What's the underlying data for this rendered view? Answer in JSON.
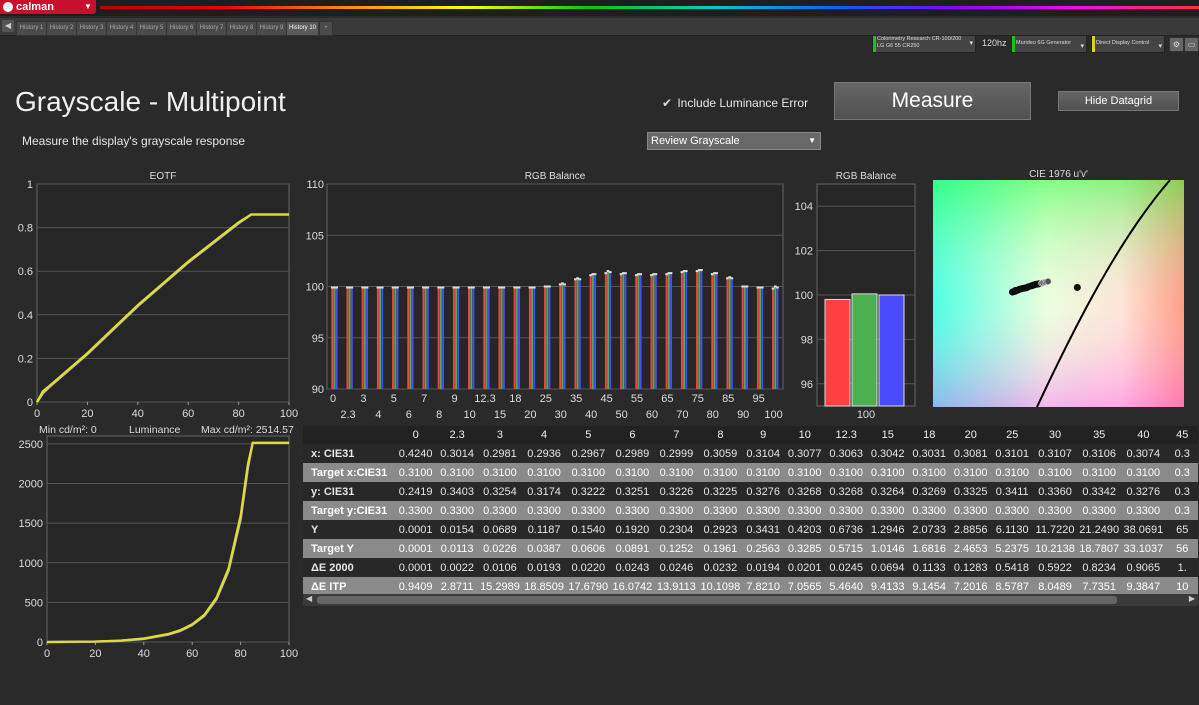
{
  "app": {
    "name": "calman"
  },
  "tabs": [
    "History 1",
    "History 2",
    "History 3",
    "History 4",
    "History 5",
    "History 6",
    "History 7",
    "History 8",
    "History 9",
    "History 10"
  ],
  "active_tab": "History 10",
  "devices": {
    "meter_line1": "Colorimetry Research CR-100/200",
    "meter_line2": "LG G6 55 CR250",
    "refresh": "120hz",
    "generator": "Murideo 6G Generator",
    "control": "Direct Display Control"
  },
  "page": {
    "title": "Grayscale - Multipoint",
    "subtitle": "Measure the display's grayscale response",
    "include_luminance_label": "Include Luminance Error",
    "measure_label": "Measure",
    "hide_datagrid_label": "Hide Datagrid",
    "review_select": "Review Grayscale"
  },
  "colors": {
    "red": "#ff4040",
    "green": "#4caf50",
    "blue": "#4a4aff",
    "yellow": "#e0e020",
    "accent": "#c8102e"
  },
  "chart_data": [
    {
      "type": "line",
      "title": "EOTF",
      "xlim": [
        0,
        100
      ],
      "ylim": [
        0,
        1
      ],
      "xticks": [
        0,
        20,
        40,
        60,
        80,
        100
      ],
      "yticks": [
        0,
        0.2,
        0.4,
        0.6,
        0.8,
        1
      ],
      "ytick_labels": [
        "0",
        "0.2",
        "0.4",
        "0.6",
        "0.8",
        "1"
      ],
      "series": [
        {
          "color": "#bdbdbd",
          "x": [
            0,
            2.3,
            5,
            10,
            20,
            40,
            60,
            80,
            85,
            100
          ],
          "y": [
            0.0,
            0.04,
            0.07,
            0.12,
            0.22,
            0.44,
            0.64,
            0.82,
            0.86,
            0.86
          ]
        },
        {
          "color": "#e0e020",
          "x": [
            0,
            2.3,
            5,
            10,
            20,
            40,
            60,
            80,
            85,
            100
          ],
          "y": [
            0.0,
            0.05,
            0.075,
            0.125,
            0.225,
            0.445,
            0.645,
            0.825,
            0.86,
            0.86
          ]
        }
      ]
    },
    {
      "type": "bar",
      "title": "RGB Balance",
      "ylim": [
        90,
        110
      ],
      "yticks": [
        90,
        95,
        100,
        105,
        110
      ],
      "xtick_labels_top": [
        "0",
        "3",
        "5",
        "7",
        "9",
        "12.3",
        "18",
        "25",
        "35",
        "45",
        "55",
        "65",
        "75",
        "85",
        "95"
      ],
      "xtick_labels_bottom": [
        "2.3",
        "4",
        "6",
        "8",
        "10",
        "15",
        "20",
        "30",
        "40",
        "50",
        "60",
        "70",
        "80",
        "90",
        "100"
      ],
      "categories": [
        "0",
        "2.3",
        "3",
        "4",
        "5",
        "6",
        "7",
        "8",
        "9",
        "10",
        "12.3",
        "15",
        "18",
        "20",
        "25",
        "30",
        "35",
        "40",
        "45",
        "50",
        "55",
        "60",
        "65",
        "70",
        "75",
        "80",
        "85",
        "90",
        "95",
        "100"
      ],
      "series": [
        {
          "color": "#ff4040",
          "values": [
            100.0,
            100.0,
            100.0,
            100.0,
            100.0,
            100.0,
            100.0,
            100.0,
            100.0,
            100.0,
            100.0,
            100.0,
            100.0,
            100.0,
            100.1,
            100.3,
            100.8,
            101.2,
            101.4,
            101.3,
            101.2,
            101.2,
            101.3,
            101.5,
            101.6,
            101.3,
            100.9,
            100.1,
            100.0,
            99.9
          ]
        },
        {
          "color": "#4caf50",
          "values": [
            100.0,
            100.0,
            100.0,
            100.0,
            100.0,
            100.0,
            100.0,
            100.0,
            100.0,
            100.0,
            100.0,
            100.0,
            100.0,
            100.0,
            100.1,
            100.4,
            100.9,
            101.3,
            101.6,
            101.4,
            101.3,
            101.3,
            101.4,
            101.6,
            101.7,
            101.4,
            101.0,
            100.1,
            100.0,
            100.1
          ]
        },
        {
          "color": "#4a4aff",
          "values": [
            100.0,
            100.0,
            100.0,
            100.0,
            100.0,
            100.0,
            100.0,
            100.0,
            100.0,
            100.0,
            100.0,
            100.0,
            100.0,
            100.0,
            100.1,
            100.3,
            100.8,
            101.3,
            101.5,
            101.4,
            101.3,
            101.3,
            101.4,
            101.6,
            101.7,
            101.4,
            100.9,
            100.1,
            100.0,
            100.0
          ]
        }
      ]
    },
    {
      "type": "bar",
      "title": "RGB Balance",
      "ylim": [
        95,
        105
      ],
      "yticks": [
        96,
        98,
        100,
        102,
        104
      ],
      "categories": [
        "100"
      ],
      "series": [
        {
          "color": "#ff4040",
          "values": [
            99.8
          ]
        },
        {
          "color": "#4caf50",
          "values": [
            100.05
          ]
        },
        {
          "color": "#4a4aff",
          "values": [
            100.0
          ]
        }
      ]
    },
    {
      "type": "scatter",
      "title": "CIE 1976 u'v'",
      "points": [
        [
          0.2145,
          0.479
        ],
        [
          0.199,
          0.476
        ],
        [
          0.1996,
          0.4765
        ],
        [
          0.1997,
          0.477
        ],
        [
          0.2002,
          0.4772
        ],
        [
          0.2007,
          0.4778
        ],
        [
          0.201,
          0.478
        ],
        [
          0.2015,
          0.4784
        ],
        [
          0.202,
          0.4786
        ],
        [
          0.2025,
          0.479
        ],
        [
          0.2028,
          0.4795
        ],
        [
          0.2035,
          0.48
        ],
        [
          0.204,
          0.4805
        ],
        [
          0.2045,
          0.481
        ],
        [
          0.205,
          0.4812
        ],
        [
          0.2055,
          0.4815
        ],
        [
          0.206,
          0.4818
        ],
        [
          0.2063,
          0.4822
        ],
        [
          0.2068,
          0.4825
        ],
        [
          0.2072,
          0.4828
        ],
        [
          0.2075,
          0.483
        ]
      ]
    },
    {
      "type": "line",
      "title": "Luminance",
      "min_label": "Min cd/m²: 0",
      "max_label": "Max cd/m²: 2514.57",
      "xlim": [
        0,
        100
      ],
      "ylim": [
        0,
        2600
      ],
      "xticks": [
        0,
        20,
        40,
        60,
        80,
        100
      ],
      "yticks": [
        0,
        500,
        1000,
        1500,
        2000,
        2500
      ],
      "series": [
        {
          "color": "#bdbdbd",
          "x": [
            0,
            20,
            30,
            40,
            50,
            55,
            60,
            65,
            70,
            75,
            80,
            83,
            85,
            100
          ],
          "y": [
            0,
            5,
            15,
            40,
            95,
            140,
            215,
            330,
            540,
            900,
            1550,
            2200,
            2514,
            2514
          ]
        },
        {
          "color": "#e0e020",
          "x": [
            0,
            20,
            30,
            40,
            50,
            55,
            60,
            65,
            70,
            75,
            80,
            83,
            85,
            100
          ],
          "y": [
            0,
            6,
            18,
            46,
            102,
            150,
            225,
            345,
            560,
            930,
            1600,
            2250,
            2514,
            2514
          ]
        }
      ]
    }
  ],
  "datagrid": {
    "columns": [
      "0",
      "2.3",
      "3",
      "4",
      "5",
      "6",
      "7",
      "8",
      "9",
      "10",
      "12.3",
      "15",
      "18",
      "20",
      "25",
      "30",
      "35",
      "40",
      "45"
    ],
    "rows": [
      {
        "label": "x: CIE31",
        "values": [
          "0.4240",
          "0.3014",
          "0.2981",
          "0.2936",
          "0.2967",
          "0.2989",
          "0.2999",
          "0.3059",
          "0.3104",
          "0.3077",
          "0.3063",
          "0.3042",
          "0.3031",
          "0.3081",
          "0.3101",
          "0.3107",
          "0.3106",
          "0.3074",
          "0.3"
        ]
      },
      {
        "label": "Target x:CIE31",
        "values": [
          "0.3100",
          "0.3100",
          "0.3100",
          "0.3100",
          "0.3100",
          "0.3100",
          "0.3100",
          "0.3100",
          "0.3100",
          "0.3100",
          "0.3100",
          "0.3100",
          "0.3100",
          "0.3100",
          "0.3100",
          "0.3100",
          "0.3100",
          "0.3100",
          "0.3"
        ]
      },
      {
        "label": "y: CIE31",
        "values": [
          "0.2419",
          "0.3403",
          "0.3254",
          "0.3174",
          "0.3222",
          "0.3251",
          "0.3226",
          "0.3225",
          "0.3276",
          "0.3268",
          "0.3268",
          "0.3264",
          "0.3269",
          "0.3325",
          "0.3411",
          "0.3360",
          "0.3342",
          "0.3276",
          "0.3"
        ]
      },
      {
        "label": "Target y:CIE31",
        "values": [
          "0.3300",
          "0.3300",
          "0.3300",
          "0.3300",
          "0.3300",
          "0.3300",
          "0.3300",
          "0.3300",
          "0.3300",
          "0.3300",
          "0.3300",
          "0.3300",
          "0.3300",
          "0.3300",
          "0.3300",
          "0.3300",
          "0.3300",
          "0.3300",
          "0.3"
        ]
      },
      {
        "label": "Y",
        "values": [
          "0.0001",
          "0.0154",
          "0.0689",
          "0.1187",
          "0.1540",
          "0.1920",
          "0.2304",
          "0.2923",
          "0.3431",
          "0.4203",
          "0.6736",
          "1.2946",
          "2.0733",
          "2.8856",
          "6.1130",
          "11.7220",
          "21.2490",
          "38.0691",
          "65"
        ]
      },
      {
        "label": "Target Y",
        "values": [
          "0.0001",
          "0.0113",
          "0.0226",
          "0.0387",
          "0.0606",
          "0.0891",
          "0.1252",
          "0.1961",
          "0.2563",
          "0.3285",
          "0.5715",
          "1.0146",
          "1.6816",
          "2.4653",
          "5.2375",
          "10.2138",
          "18.7807",
          "33.1037",
          "56"
        ]
      },
      {
        "label": "ΔE 2000",
        "values": [
          "0.0001",
          "0.0022",
          "0.0106",
          "0.0193",
          "0.0220",
          "0.0243",
          "0.0246",
          "0.0232",
          "0.0194",
          "0.0201",
          "0.0245",
          "0.0694",
          "0.1133",
          "0.1283",
          "0.5418",
          "0.5922",
          "0.8234",
          "0.9065",
          "1."
        ]
      },
      {
        "label": "ΔE ITP",
        "values": [
          "0.9409",
          "2.8711",
          "15.2989",
          "18.8509",
          "17.6790",
          "16.0742",
          "13.9113",
          "10.1098",
          "7.8210",
          "7.0565",
          "5.4640",
          "9.4133",
          "9.1454",
          "7.2016",
          "8.5787",
          "8.0489",
          "7.7351",
          "9.3847",
          "10"
        ]
      }
    ]
  }
}
